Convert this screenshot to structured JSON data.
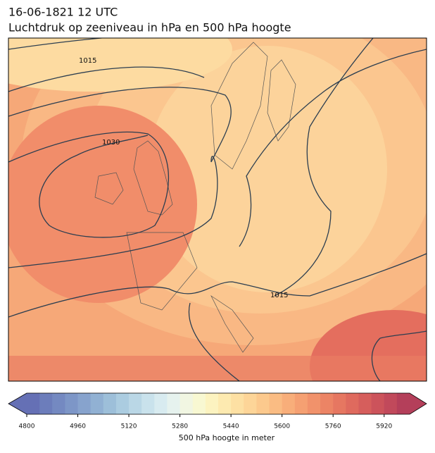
{
  "header": {
    "title": "16-06-1821 12 UTC",
    "subtitle": "Luchtdruk op zeeniveau in hPa en 500 hPa hoogte"
  },
  "map": {
    "contour_labels": [
      "1015",
      "1030",
      "1015"
    ]
  },
  "colorbar": {
    "label": "500 hPa hoogte in meter",
    "range": [
      4800,
      6000
    ],
    "ticks": [
      4800,
      4960,
      5120,
      5280,
      5440,
      5600,
      5760,
      5920
    ],
    "colors": [
      "#6570b5",
      "#6c7dbb",
      "#7489c1",
      "#7d96c7",
      "#87a3cd",
      "#91b1d3",
      "#9dbfd9",
      "#abcce0",
      "#bad7e6",
      "#c9e2ec",
      "#d8ebf0",
      "#e6f2ee",
      "#f1f6e2",
      "#f8f8d2",
      "#fcf3c0",
      "#fdeab0",
      "#fde0a3",
      "#fdd598",
      "#fcc98d",
      "#fabc83",
      "#f8ae7a",
      "#f5a072",
      "#f1926b",
      "#ec8465",
      "#e67761",
      "#df6a5e",
      "#d65e5c",
      "#cc535b",
      "#c1495b",
      "#b43f5a"
    ]
  }
}
